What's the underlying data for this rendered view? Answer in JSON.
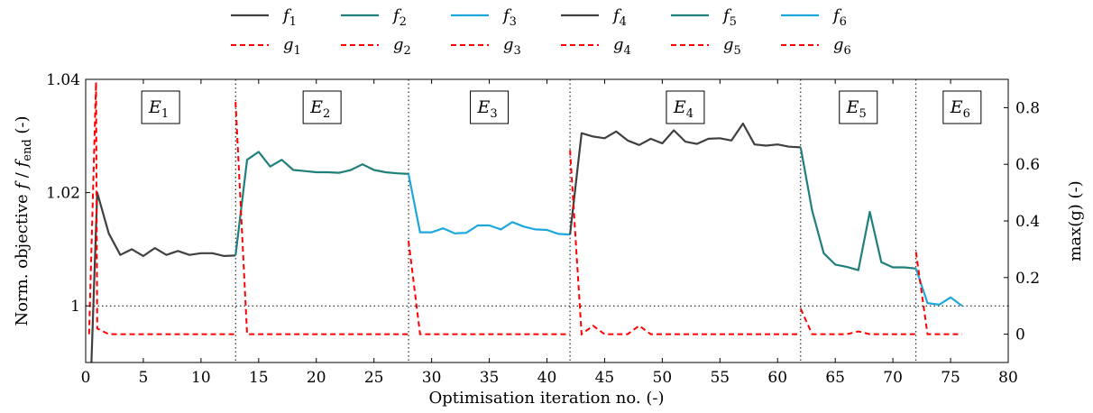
{
  "chart_data": {
    "type": "line",
    "xlabel": "Optimisation iteration no. (-)",
    "ylabel_left": "Norm. objective f / f_end (-)",
    "ylabel_right": "max(g) (-)",
    "xlim": [
      0,
      80
    ],
    "ylim_left": [
      0.99,
      1.04
    ],
    "ylim_right": [
      -0.1,
      0.9
    ],
    "x_ticks": [
      "0",
      "5",
      "10",
      "15",
      "20",
      "25",
      "30",
      "35",
      "40",
      "45",
      "50",
      "55",
      "60",
      "65",
      "70",
      "75",
      "80"
    ],
    "y_left_ticks": [
      "1",
      "1.02",
      "1.04"
    ],
    "y_right_ticks": [
      "0",
      "0.2",
      "0.4",
      "0.6",
      "0.8"
    ],
    "reference_line_left": 1,
    "segment_boundaries": [
      13,
      28,
      42,
      62,
      72
    ],
    "segments": [
      {
        "label": "E",
        "sub": "1",
        "x_center": 6.5
      },
      {
        "label": "E",
        "sub": "2",
        "x_center": 20.5
      },
      {
        "label": "E",
        "sub": "3",
        "x_center": 35
      },
      {
        "label": "E",
        "sub": "4",
        "x_center": 52
      },
      {
        "label": "E",
        "sub": "5",
        "x_center": 67
      },
      {
        "label": "E",
        "sub": "6",
        "x_center": 76
      }
    ],
    "series_f": [
      {
        "name": "f1",
        "color": "#404040",
        "x": [
          0.3,
          1,
          2,
          3,
          4,
          5,
          6,
          7,
          8,
          9,
          10,
          11,
          12,
          13
        ],
        "y": [
          0.978,
          1.02,
          1.0128,
          1.009,
          1.01,
          1.0088,
          1.0102,
          1.009,
          1.0097,
          1.009,
          1.0093,
          1.0093,
          1.0088,
          1.0089
        ]
      },
      {
        "name": "f2",
        "color": "#1f7f7a",
        "x": [
          13,
          14,
          15,
          16,
          17,
          18,
          19,
          20,
          21,
          22,
          23,
          24,
          25,
          26,
          27,
          28
        ],
        "y": [
          1.0089,
          1.0258,
          1.0272,
          1.0246,
          1.0258,
          1.024,
          1.0238,
          1.0236,
          1.0236,
          1.0235,
          1.024,
          1.025,
          1.024,
          1.0236,
          1.0234,
          1.0233
        ]
      },
      {
        "name": "f3",
        "color": "#1ea7dc",
        "x": [
          28,
          29,
          30,
          31,
          32,
          33,
          34,
          35,
          36,
          37,
          38,
          39,
          40,
          41,
          42
        ],
        "y": [
          1.0233,
          1.013,
          1.013,
          1.0137,
          1.0128,
          1.0129,
          1.0142,
          1.0142,
          1.0135,
          1.0148,
          1.014,
          1.0135,
          1.0134,
          1.0127,
          1.0126
        ]
      },
      {
        "name": "f4",
        "color": "#404040",
        "x": [
          42,
          43,
          44,
          45,
          46,
          47,
          48,
          49,
          50,
          51,
          52,
          53,
          54,
          55,
          56,
          57,
          58,
          59,
          60,
          61,
          62
        ],
        "y": [
          1.0126,
          1.0305,
          1.0299,
          1.0296,
          1.0308,
          1.0292,
          1.0284,
          1.0295,
          1.0287,
          1.031,
          1.029,
          1.0286,
          1.0295,
          1.0296,
          1.0292,
          1.0322,
          1.0285,
          1.0283,
          1.0285,
          1.0281,
          1.028
        ]
      },
      {
        "name": "f5",
        "color": "#1f7f7a",
        "x": [
          62,
          63,
          64,
          65,
          66,
          67,
          68,
          69,
          70,
          71,
          72
        ],
        "y": [
          1.028,
          1.0168,
          1.0093,
          1.0073,
          1.0069,
          1.0063,
          1.0166,
          1.0077,
          1.0068,
          1.0068,
          1.0066
        ]
      },
      {
        "name": "f6",
        "color": "#1ea7dc",
        "x": [
          72,
          73,
          74,
          75,
          76
        ],
        "y": [
          1.0066,
          1.0005,
          1.0002,
          1.0015,
          1.0
        ]
      }
    ],
    "series_g": [
      {
        "name": "g1",
        "color": "#ff0000",
        "x": [
          0.3,
          0.9,
          1,
          2,
          3,
          4,
          5,
          6,
          7,
          8,
          9,
          10,
          11,
          12,
          13
        ],
        "y": [
          0.0,
          0.89,
          0.02,
          0.0,
          0.0,
          0.0,
          0.0,
          0.0,
          0.0,
          0.0,
          0.0,
          0.0,
          0.0,
          0.0,
          0.0
        ]
      },
      {
        "name": "g2",
        "color": "#ff0000",
        "x": [
          13,
          14,
          15,
          16,
          17,
          18,
          19,
          20,
          21,
          22,
          23,
          24,
          25,
          26,
          27,
          28
        ],
        "y": [
          0.82,
          0.0,
          0.0,
          0.0,
          0.0,
          0.0,
          0.0,
          0.0,
          0.0,
          0.0,
          0.0,
          0.0,
          0.0,
          0.0,
          0.0,
          0.0
        ]
      },
      {
        "name": "g3",
        "color": "#ff0000",
        "x": [
          28,
          29,
          30,
          31,
          32,
          33,
          34,
          35,
          36,
          37,
          38,
          39,
          40,
          41,
          42
        ],
        "y": [
          0.33,
          0.0,
          0.0,
          0.0,
          0.0,
          0.0,
          0.0,
          0.0,
          0.0,
          0.0,
          0.0,
          0.0,
          0.0,
          0.0,
          0.0
        ]
      },
      {
        "name": "g4",
        "color": "#ff0000",
        "x": [
          42,
          43,
          44,
          45,
          46,
          47,
          48,
          49,
          50,
          51,
          52,
          53,
          54,
          55,
          56,
          57,
          58,
          59,
          60,
          61,
          62
        ],
        "y": [
          0.65,
          0.0,
          0.03,
          0.0,
          0.0,
          0.0,
          0.03,
          0.0,
          0.0,
          0.0,
          0.0,
          0.0,
          0.0,
          0.0,
          0.0,
          0.0,
          0.0,
          0.0,
          0.0,
          0.0,
          0.0
        ]
      },
      {
        "name": "g5",
        "color": "#ff0000",
        "x": [
          62,
          63,
          64,
          65,
          66,
          67,
          68,
          69,
          70,
          71,
          72
        ],
        "y": [
          0.09,
          0.0,
          0.0,
          0.0,
          0.0,
          0.01,
          0.0,
          0.0,
          0.0,
          0.0,
          0.0
        ]
      },
      {
        "name": "g6",
        "color": "#ff0000",
        "x": [
          72,
          73,
          74,
          75,
          76
        ],
        "y": [
          0.29,
          0.0,
          0.0,
          0.0,
          0.0
        ]
      }
    ],
    "legend": {
      "placement": "top-center",
      "f_entries": [
        {
          "letter": "f",
          "sub": "1",
          "color": "#404040"
        },
        {
          "letter": "f",
          "sub": "2",
          "color": "#1f7f7a"
        },
        {
          "letter": "f",
          "sub": "3",
          "color": "#1ea7dc"
        },
        {
          "letter": "f",
          "sub": "4",
          "color": "#404040"
        },
        {
          "letter": "f",
          "sub": "5",
          "color": "#1f7f7a"
        },
        {
          "letter": "f",
          "sub": "6",
          "color": "#1ea7dc"
        }
      ],
      "g_entries": [
        {
          "letter": "g",
          "sub": "1",
          "color": "#ff0000"
        },
        {
          "letter": "g",
          "sub": "2",
          "color": "#ff0000"
        },
        {
          "letter": "g",
          "sub": "3",
          "color": "#ff0000"
        },
        {
          "letter": "g",
          "sub": "4",
          "color": "#ff0000"
        },
        {
          "letter": "g",
          "sub": "5",
          "color": "#ff0000"
        },
        {
          "letter": "g",
          "sub": "6",
          "color": "#ff0000"
        }
      ]
    }
  }
}
